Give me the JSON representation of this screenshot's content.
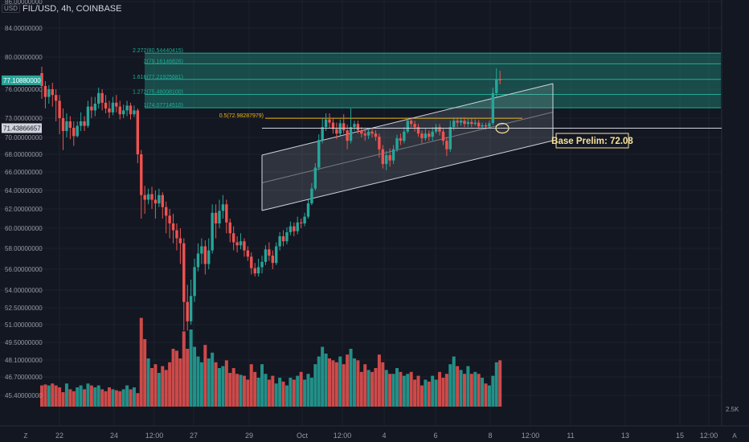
{
  "header": {
    "symbol": "FIL/USD, 4h, COINBASE",
    "currency": "USD"
  },
  "price_axis": {
    "ticks": [
      "86.00000000",
      "84.00000000",
      "80.00000000",
      "76.00000000",
      "73.00000000",
      "70.00000000",
      "68.00000000",
      "66.00000000",
      "64.00000000",
      "62.00000000",
      "60.00000000",
      "58.00000000",
      "56.00000000",
      "54.00000000",
      "52.50000000",
      "51.00000000",
      "49.50000000",
      "48.10000000",
      "46.70000000",
      "45.40000000"
    ],
    "current_price": "77.10880000",
    "line_price": "71.43866657",
    "volume_tick": "2.5K",
    "currency_badge": "USD"
  },
  "time_axis": {
    "ticks": [
      "22",
      "24",
      "12:00",
      "27",
      "29",
      "Oct",
      "12:00",
      "4",
      "6",
      "8",
      "12:00",
      "11",
      "13",
      "15",
      "12:00"
    ]
  },
  "fib_levels": [
    {
      "label": "2.272(80.54440415)",
      "price": 80.544
    },
    {
      "label": "2(79.16146826)",
      "price": 79.161
    },
    {
      "label": "1.618(77.21925681)",
      "price": 77.219
    },
    {
      "label": "1.272(75.46008100)",
      "price": 75.46
    },
    {
      "label": "1(74.07714510)",
      "price": 74.077
    },
    {
      "label": "0.5(72.98287979)",
      "price": 72.983
    }
  ],
  "annotation": {
    "text": "Base Prelim: 72.08"
  },
  "colors": {
    "bull": "#26a69a",
    "bear": "#ef5350",
    "bg": "#131722",
    "channel": "#d1d4dc",
    "fib": "#22ab94",
    "fib_half": "#f0b90b"
  },
  "icons": {
    "zoom": "z-glyph-icon",
    "auto": "a-glyph-icon"
  }
}
